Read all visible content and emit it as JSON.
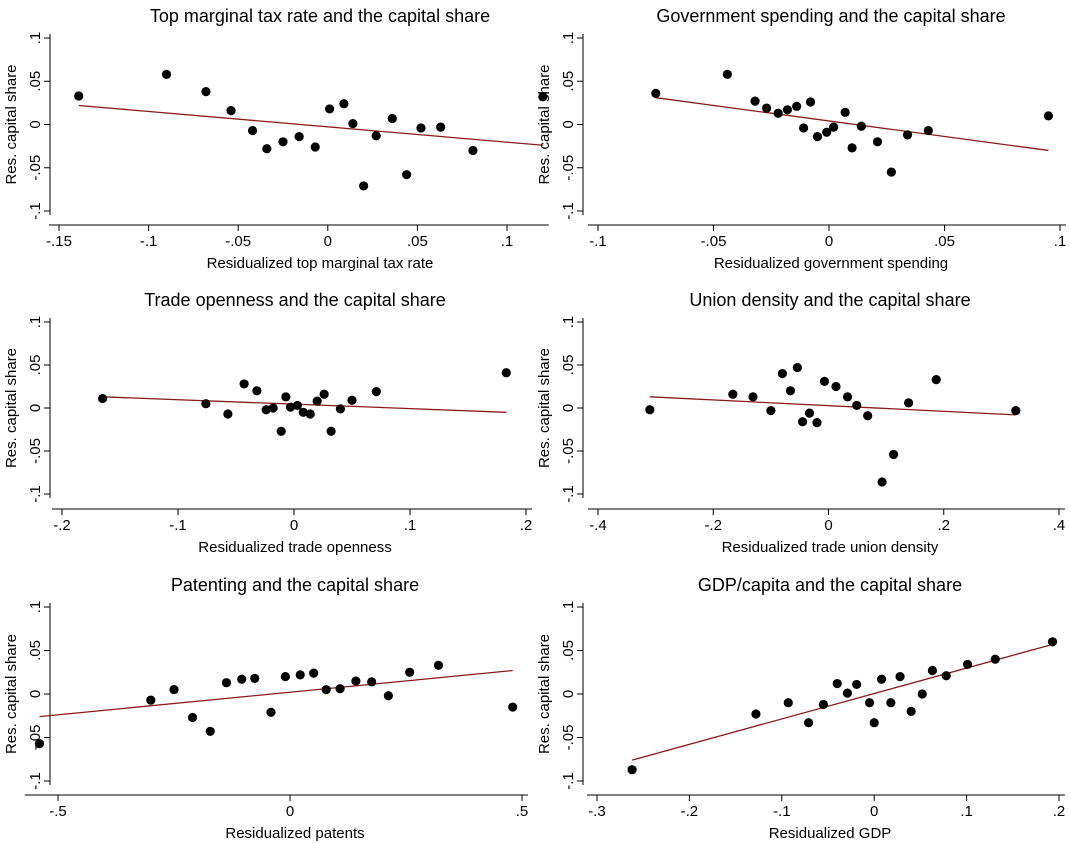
{
  "chart_data": [
    {
      "type": "scatter",
      "title": "Top marginal tax rate and the capital share",
      "xlabel": "Residualized top marginal tax rate",
      "ylabel": "Res. capital share",
      "xlim": [
        -0.15,
        0.12
      ],
      "ylim": [
        -0.1,
        0.1
      ],
      "xticks": [
        -0.15,
        -0.1,
        -0.05,
        0,
        0.05,
        0.1
      ],
      "xtick_labels": [
        "-.15",
        "-.1",
        "-.05",
        "0",
        ".05",
        ".1"
      ],
      "yticks": [
        -0.1,
        -0.05,
        0,
        0.05,
        0.1
      ],
      "ytick_labels": [
        "-.1",
        "-.05",
        "0",
        ".05",
        ".1"
      ],
      "grid": false,
      "colors": {
        "points": "#000000",
        "fit": "#8b1a1a"
      },
      "points": [
        [
          -0.139,
          0.033
        ],
        [
          -0.09,
          0.058
        ],
        [
          -0.068,
          0.038
        ],
        [
          -0.054,
          0.016
        ],
        [
          -0.042,
          -0.007
        ],
        [
          -0.034,
          -0.028
        ],
        [
          -0.025,
          -0.02
        ],
        [
          -0.016,
          -0.014
        ],
        [
          -0.007,
          -0.026
        ],
        [
          0.001,
          0.018
        ],
        [
          0.009,
          0.024
        ],
        [
          0.014,
          0.001
        ],
        [
          0.02,
          -0.071
        ],
        [
          0.027,
          -0.013
        ],
        [
          0.036,
          0.007
        ],
        [
          0.044,
          -0.058
        ],
        [
          0.052,
          -0.004
        ],
        [
          0.063,
          -0.003
        ],
        [
          0.081,
          -0.03
        ],
        [
          0.12,
          0.032
        ]
      ],
      "fit_line": [
        [
          -0.139,
          0.022
        ],
        [
          0.12,
          -0.024
        ]
      ]
    },
    {
      "type": "scatter",
      "title": "Government spending and the capital share",
      "xlabel": "Residualized government spending",
      "ylabel": "Res. capital share",
      "xlim": [
        -0.1,
        0.1
      ],
      "ylim": [
        -0.1,
        0.1
      ],
      "xticks": [
        -0.1,
        -0.05,
        0,
        0.05,
        0.1
      ],
      "xtick_labels": [
        "-.1",
        "-.05",
        "0",
        ".05",
        ".1"
      ],
      "yticks": [
        -0.1,
        -0.05,
        0,
        0.05,
        0.1
      ],
      "ytick_labels": [
        "-.1",
        "-.05",
        "0",
        ".05",
        ".1"
      ],
      "grid": false,
      "colors": {
        "points": "#000000",
        "fit": "#8b1a1a"
      },
      "points": [
        [
          -0.075,
          0.036
        ],
        [
          -0.044,
          0.058
        ],
        [
          -0.032,
          0.027
        ],
        [
          -0.027,
          0.019
        ],
        [
          -0.022,
          0.013
        ],
        [
          -0.018,
          0.017
        ],
        [
          -0.014,
          0.021
        ],
        [
          -0.011,
          -0.004
        ],
        [
          -0.008,
          0.026
        ],
        [
          -0.005,
          -0.014
        ],
        [
          -0.001,
          -0.009
        ],
        [
          0.002,
          -0.003
        ],
        [
          0.007,
          0.014
        ],
        [
          0.01,
          -0.027
        ],
        [
          0.014,
          -0.002
        ],
        [
          0.021,
          -0.02
        ],
        [
          0.027,
          -0.055
        ],
        [
          0.034,
          -0.012
        ],
        [
          0.043,
          -0.007
        ],
        [
          0.095,
          0.01
        ]
      ],
      "fit_line": [
        [
          -0.075,
          0.031
        ],
        [
          0.095,
          -0.03
        ]
      ]
    },
    {
      "type": "scatter",
      "title": "Trade openness and the capital share",
      "xlabel": "Residualized trade openness",
      "ylabel": "Res. capital share",
      "xlim": [
        -0.2,
        0.2
      ],
      "ylim": [
        -0.1,
        0.1
      ],
      "xticks": [
        -0.2,
        -0.1,
        0,
        0.1,
        0.2
      ],
      "xtick_labels": [
        "-.2",
        "-.1",
        "0",
        ".1",
        ".2"
      ],
      "yticks": [
        -0.1,
        -0.05,
        0,
        0.05,
        0.1
      ],
      "ytick_labels": [
        "-.1",
        "-.05",
        "0",
        ".05",
        ".1"
      ],
      "grid": false,
      "colors": {
        "points": "#000000",
        "fit": "#8b1a1a"
      },
      "points": [
        [
          -0.165,
          0.011
        ],
        [
          -0.076,
          0.005
        ],
        [
          -0.057,
          -0.007
        ],
        [
          -0.043,
          0.028
        ],
        [
          -0.032,
          0.02
        ],
        [
          -0.024,
          -0.002
        ],
        [
          -0.018,
          0.0
        ],
        [
          -0.011,
          -0.027
        ],
        [
          -0.007,
          0.013
        ],
        [
          -0.003,
          0.001
        ],
        [
          0.003,
          0.003
        ],
        [
          0.008,
          -0.005
        ],
        [
          0.014,
          -0.007
        ],
        [
          0.02,
          0.008
        ],
        [
          0.026,
          0.016
        ],
        [
          0.032,
          -0.027
        ],
        [
          0.04,
          -0.001
        ],
        [
          0.05,
          0.009
        ],
        [
          0.071,
          0.019
        ],
        [
          0.183,
          0.041
        ]
      ],
      "fit_line": [
        [
          -0.165,
          0.013
        ],
        [
          0.183,
          -0.005
        ]
      ]
    },
    {
      "type": "scatter",
      "title": "Union density and the capital share",
      "xlabel": "Residualized trade union density",
      "ylabel": "Res. capital share",
      "xlim": [
        -0.4,
        0.4
      ],
      "ylim": [
        -0.1,
        0.1
      ],
      "xticks": [
        -0.4,
        -0.2,
        0,
        0.2,
        0.4
      ],
      "xtick_labels": [
        "-.4",
        "-.2",
        "0",
        ".2",
        ".4"
      ],
      "yticks": [
        -0.1,
        -0.05,
        0,
        0.05,
        0.1
      ],
      "ytick_labels": [
        "-.1",
        "-.05",
        "0",
        ".05",
        ".1"
      ],
      "grid": false,
      "colors": {
        "points": "#000000",
        "fit": "#8b1a1a"
      },
      "points": [
        [
          -0.31,
          -0.002
        ],
        [
          -0.166,
          0.016
        ],
        [
          -0.131,
          0.013
        ],
        [
          -0.1,
          -0.003
        ],
        [
          -0.08,
          0.04
        ],
        [
          -0.066,
          0.02
        ],
        [
          -0.054,
          0.047
        ],
        [
          -0.045,
          -0.016
        ],
        [
          -0.033,
          -0.006
        ],
        [
          -0.02,
          -0.017
        ],
        [
          -0.007,
          0.031
        ],
        [
          0.013,
          0.025
        ],
        [
          0.033,
          0.013
        ],
        [
          0.049,
          0.003
        ],
        [
          0.068,
          -0.009
        ],
        [
          0.093,
          -0.086
        ],
        [
          0.113,
          -0.054
        ],
        [
          0.139,
          0.006
        ],
        [
          0.187,
          0.033
        ],
        [
          0.325,
          -0.003
        ]
      ],
      "fit_line": [
        [
          -0.31,
          0.013
        ],
        [
          0.325,
          -0.008
        ]
      ]
    },
    {
      "type": "scatter",
      "title": "Patenting and the capital share",
      "xlabel": "Residualized patents",
      "ylabel": "Res. capital share",
      "xlim": [
        -0.55,
        0.5
      ],
      "ylim": [
        -0.1,
        0.1
      ],
      "xticks": [
        -0.5,
        0,
        0.5
      ],
      "xtick_labels": [
        "-.5",
        "0",
        ".5"
      ],
      "yticks": [
        -0.1,
        -0.05,
        0,
        0.05,
        0.1
      ],
      "ytick_labels": [
        "-.1",
        "-.05",
        "0",
        ".05",
        ".1"
      ],
      "grid": false,
      "colors": {
        "points": "#000000",
        "fit": "#8b1a1a"
      },
      "points": [
        [
          -0.54,
          -0.057
        ],
        [
          -0.3,
          -0.007
        ],
        [
          -0.25,
          0.005
        ],
        [
          -0.21,
          -0.027
        ],
        [
          -0.172,
          -0.043
        ],
        [
          -0.137,
          0.013
        ],
        [
          -0.104,
          0.017
        ],
        [
          -0.076,
          0.018
        ],
        [
          -0.041,
          -0.021
        ],
        [
          -0.01,
          0.02
        ],
        [
          0.022,
          0.022
        ],
        [
          0.051,
          0.024
        ],
        [
          0.078,
          0.005
        ],
        [
          0.108,
          0.006
        ],
        [
          0.142,
          0.015
        ],
        [
          0.176,
          0.014
        ],
        [
          0.212,
          -0.002
        ],
        [
          0.258,
          0.025
        ],
        [
          0.32,
          0.033
        ],
        [
          0.48,
          -0.015
        ]
      ],
      "fit_line": [
        [
          -0.54,
          -0.026
        ],
        [
          0.48,
          0.027
        ]
      ]
    },
    {
      "type": "scatter",
      "title": "GDP/capita and the capital share",
      "xlabel": "Residualized GDP",
      "ylabel": "Res. capital share",
      "xlim": [
        -0.3,
        0.2
      ],
      "ylim": [
        -0.1,
        0.1
      ],
      "xticks": [
        -0.3,
        -0.2,
        -0.1,
        0,
        0.1,
        0.2
      ],
      "xtick_labels": [
        "-.3",
        "-.2",
        "-.1",
        "0",
        ".1",
        ".2"
      ],
      "yticks": [
        -0.1,
        -0.05,
        0,
        0.05,
        0.1
      ],
      "ytick_labels": [
        "-.1",
        "-.05",
        "0",
        ".05",
        ".1"
      ],
      "grid": false,
      "colors": {
        "points": "#000000",
        "fit": "#8b1a1a"
      },
      "points": [
        [
          -0.262,
          -0.087
        ],
        [
          -0.128,
          -0.023
        ],
        [
          -0.093,
          -0.01
        ],
        [
          -0.071,
          -0.033
        ],
        [
          -0.055,
          -0.012
        ],
        [
          -0.04,
          0.012
        ],
        [
          -0.029,
          0.001
        ],
        [
          -0.019,
          0.011
        ],
        [
          -0.005,
          -0.01
        ],
        [
          0.0,
          -0.033
        ],
        [
          0.008,
          0.017
        ],
        [
          0.018,
          -0.01
        ],
        [
          0.028,
          0.02
        ],
        [
          0.04,
          -0.02
        ],
        [
          0.052,
          0.0
        ],
        [
          0.063,
          0.027
        ],
        [
          0.078,
          0.021
        ],
        [
          0.101,
          0.034
        ],
        [
          0.131,
          0.04
        ],
        [
          0.193,
          0.06
        ]
      ],
      "fit_line": [
        [
          -0.262,
          -0.076
        ],
        [
          0.193,
          0.057
        ]
      ]
    }
  ]
}
